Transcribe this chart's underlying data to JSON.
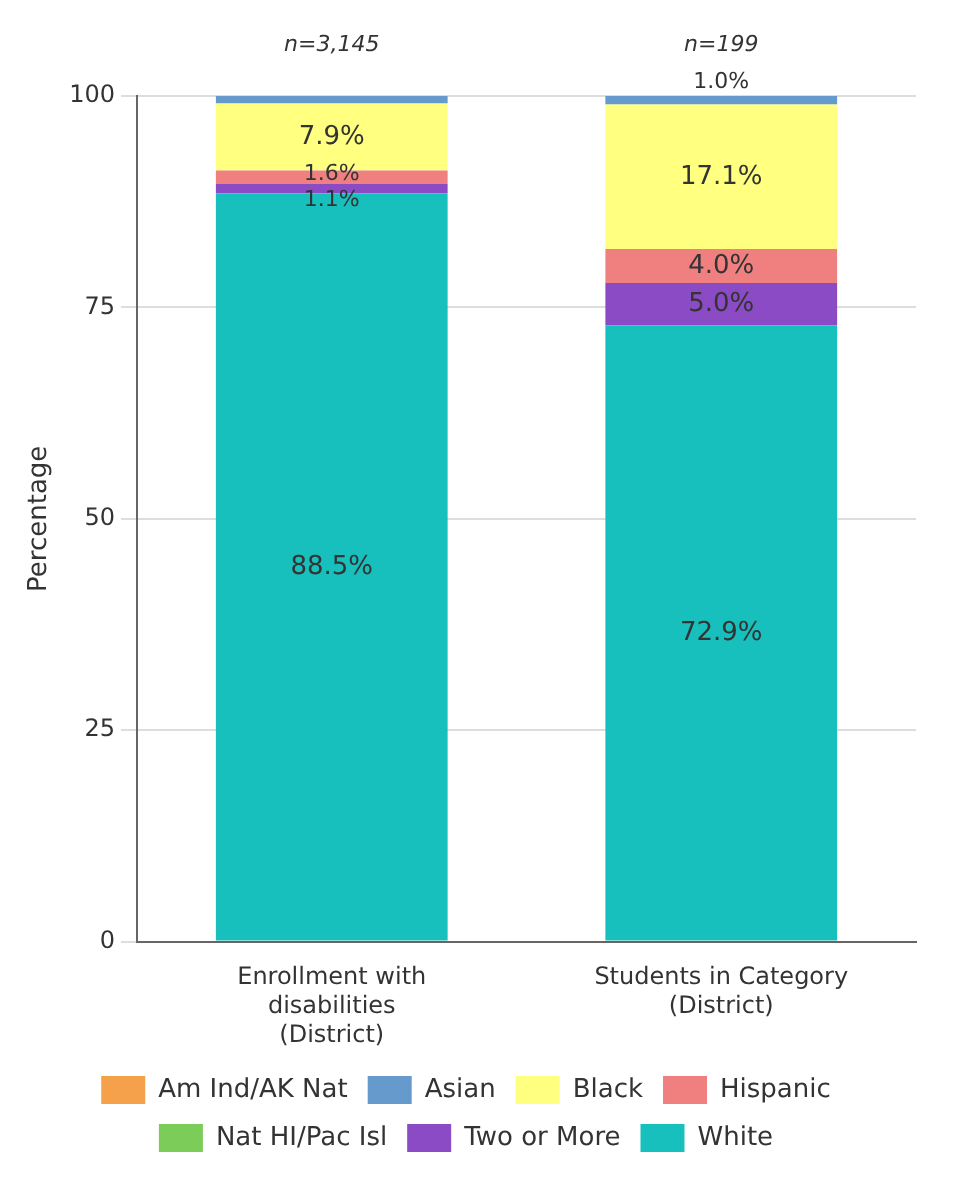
{
  "chart_data": {
    "type": "bar",
    "stacked": true,
    "ylabel": "Percentage",
    "categories": [
      "Enrollment with disabilities (District)",
      "Students in Category (District)"
    ],
    "ylim": [
      0,
      100
    ],
    "yticks": [
      0,
      25,
      50,
      75,
      100
    ],
    "grid": "y",
    "legend": "bottom",
    "annotations": [
      {
        "text": "n=3,145",
        "x": "Enrollment with disabilities (District)",
        "y": 100
      },
      {
        "text": "n=199",
        "x": "Students in Category (District)",
        "y": 100
      }
    ],
    "series": [
      {
        "name": "White",
        "color": "#17c0bd",
        "values": [
          88.5,
          72.9
        ],
        "value_labels": [
          "88.5%",
          "72.9%"
        ]
      },
      {
        "name": "Two or More",
        "color": "#8b4bc4",
        "values": [
          1.1,
          5.0
        ],
        "value_labels": [
          "1.1%",
          "5.0%"
        ]
      },
      {
        "name": "Nat HI/Pac Isl",
        "color": "#7ccc5a",
        "values": [
          0,
          0
        ],
        "value_labels": [
          null,
          null
        ]
      },
      {
        "name": "Hispanic",
        "color": "#f08080",
        "values": [
          1.6,
          4.0
        ],
        "value_labels": [
          "1.6%",
          "4.0%"
        ]
      },
      {
        "name": "Black",
        "color": "#ffff80",
        "values": [
          7.9,
          17.1
        ],
        "value_labels": [
          "7.9%",
          "17.1%"
        ]
      },
      {
        "name": "Asian",
        "color": "#6699cc",
        "values": [
          0.9,
          1.0
        ],
        "value_labels": [
          null,
          "1.0%"
        ]
      },
      {
        "name": "Am Ind/AK Nat",
        "color": "#f5a04b",
        "values": [
          0,
          0
        ],
        "value_labels": [
          null,
          null
        ]
      }
    ]
  }
}
